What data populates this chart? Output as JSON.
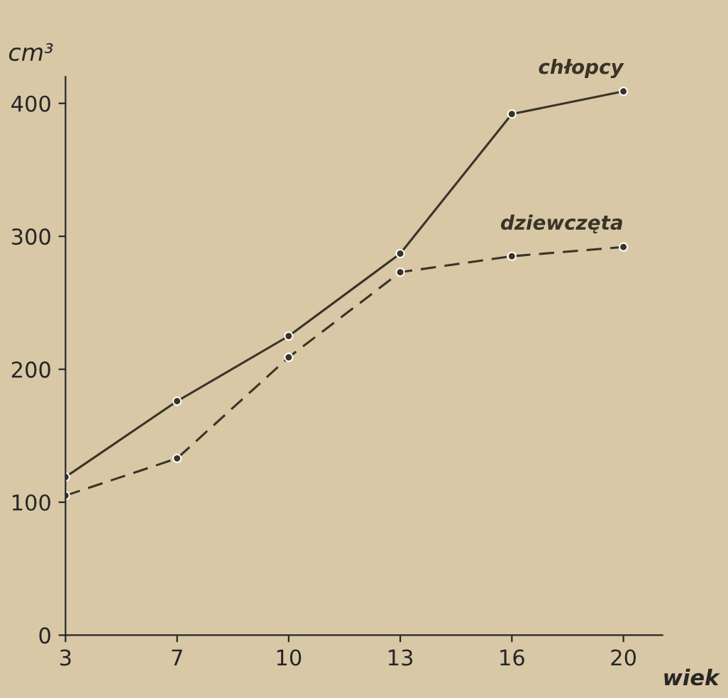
{
  "chart_data": {
    "type": "line",
    "xlabel": "wiek",
    "ylabel": "cm³",
    "categories": [
      "3",
      "7",
      "10",
      "13",
      "16",
      "20"
    ],
    "series": [
      {
        "name": "chłopcy",
        "color": "#3a3328",
        "values": [
          119,
          176,
          225,
          287,
          392,
          409
        ],
        "line_style": "solid"
      },
      {
        "name": "dziewczęta",
        "color": "#3a3328",
        "values": [
          105,
          133,
          209,
          273,
          285,
          292
        ],
        "line_style": "dashed"
      }
    ],
    "ylim": [
      0,
      420
    ],
    "yticks": [
      0,
      100,
      200,
      300,
      400
    ],
    "marker": "circle",
    "grid": false,
    "legend": false
  }
}
